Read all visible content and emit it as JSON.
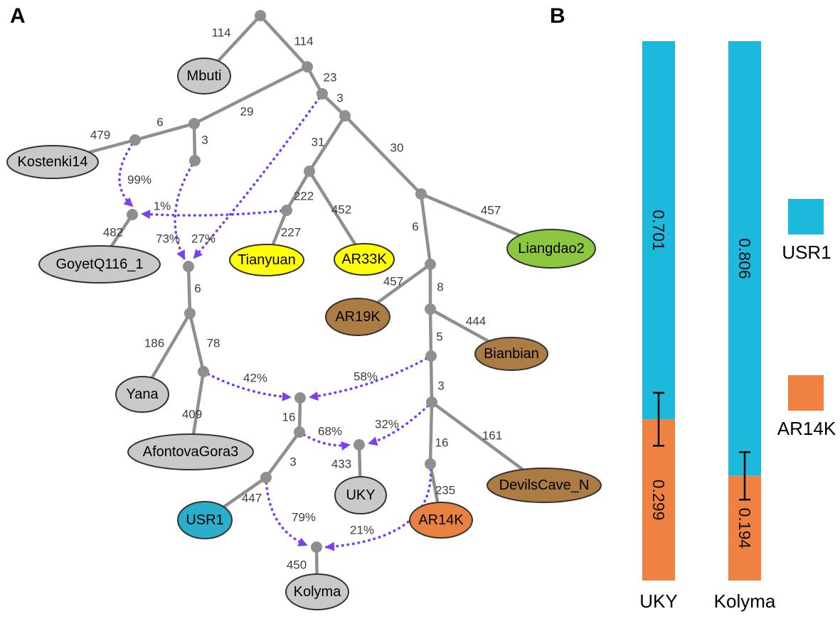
{
  "panels": {
    "a": "A",
    "b": "B"
  },
  "colors": {
    "edge_gray": "#8F8F8F",
    "admixture_purple": "#7B3FF2",
    "label_dark": "#3C3C3C",
    "leaf_gray": "#C9C9C9",
    "leaf_yellow": "#FFFF00",
    "leaf_green": "#8DC63F",
    "leaf_brown": "#AC7C45",
    "leaf_cyan": "#2BAECB",
    "leaf_orange": "#E98140"
  },
  "graph": {
    "leaves": {
      "mbuti": {
        "label": "Mbuti",
        "fill": "#C9C9C9"
      },
      "kostenki14": {
        "label": "Kostenki14",
        "fill": "#C9C9C9"
      },
      "goyet": {
        "label": "GoyetQ116_1",
        "fill": "#C9C9C9"
      },
      "tianyuan": {
        "label": "Tianyuan",
        "fill": "#FFFF00"
      },
      "ar33k": {
        "label": "AR33K",
        "fill": "#FFFF00"
      },
      "liangdao2": {
        "label": "Liangdao2",
        "fill": "#8DC63F"
      },
      "ar19k": {
        "label": "AR19K",
        "fill": "#AC7C45"
      },
      "bianbian": {
        "label": "Bianbian",
        "fill": "#AC7C45"
      },
      "yana": {
        "label": "Yana",
        "fill": "#C9C9C9"
      },
      "afontovagora3": {
        "label": "AfontovaGora3",
        "fill": "#C9C9C9"
      },
      "usr1": {
        "label": "USR1",
        "fill": "#2BAECB"
      },
      "uky": {
        "label": "UKY",
        "fill": "#C9C9C9"
      },
      "ar14k": {
        "label": "AR14K",
        "fill": "#E98140"
      },
      "devilscave": {
        "label": "DevilsCave_N",
        "fill": "#AC7C45"
      },
      "kolyma": {
        "label": "Kolyma",
        "fill": "#C9C9C9"
      }
    },
    "edge_labels": {
      "root_mbuti": "114",
      "root_a": "114",
      "a_b": "29",
      "a_c": "23",
      "c_d": "3",
      "e_kostenki": "479",
      "b_e": "6",
      "b_f": "3",
      "g_goyet": "482",
      "d_h": "31",
      "d_i": "30",
      "h_j": "222",
      "h_ar33k": "452",
      "j_tianyuan": "227",
      "i_liangdao2": "457",
      "i_k": "6",
      "k_ar19k": "457",
      "k_l": "8",
      "l_bianbian": "444",
      "l_m": "5",
      "m_n": "3",
      "n_o": "16",
      "n_devilscave": "161",
      "o_ar14k": "235",
      "v_w": "6",
      "w_yana": "186",
      "w_x": "78",
      "x_afontova": "409",
      "p_s": "16",
      "s_t": "3",
      "q_uky": "433",
      "t_usr1": "447",
      "r_kolyma": "450"
    },
    "admix_labels": {
      "e_g": "99%",
      "j_g": "1%",
      "f_v": "73%",
      "c_v": "27%",
      "x_p": "42%",
      "m_p": "58%",
      "s_q": "68%",
      "n_q": "32%",
      "t_r": "79%",
      "o_r": "21%"
    }
  },
  "chart_data": {
    "type": "bar",
    "subtype": "stacked",
    "categories": [
      "UKY",
      "Kolyma"
    ],
    "series": [
      {
        "name": "USR1",
        "color": "#1CB9DC",
        "values": [
          0.701,
          0.806
        ]
      },
      {
        "name": "AR14K",
        "color": "#EF8143",
        "values": [
          0.299,
          0.194
        ]
      }
    ],
    "errors": [
      0.049,
      0.044
    ],
    "ylim": [
      0,
      1
    ],
    "legend_position": "right"
  }
}
